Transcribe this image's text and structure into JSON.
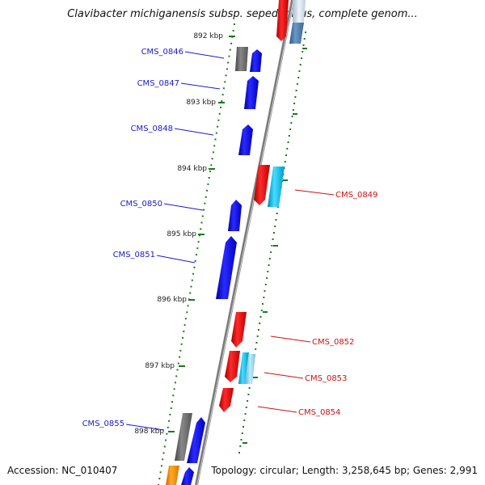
{
  "title": "Clavibacter michiganensis subsp. sepedonicus, complete genom...",
  "footer": {
    "accession": "Accession: NC_010407",
    "summary": "Topology: circular; Length: 3,258,645 bp; Genes: 2,991"
  },
  "colors": {
    "backbone": "#8a8a8a",
    "tick": "#1a7a1a",
    "label_forward": "#1a1acc",
    "label_reverse": "#cc1111"
  },
  "ticks": [
    "892 kbp",
    "893 kbp",
    "894 kbp",
    "895 kbp",
    "896 kbp",
    "897 kbp",
    "898 kbp"
  ],
  "genes": [
    {
      "label": "CMS_0846",
      "strand": "forward"
    },
    {
      "label": "CMS_0847",
      "strand": "forward"
    },
    {
      "label": "CMS_0848",
      "strand": "forward"
    },
    {
      "label": "CMS_0850",
      "strand": "forward"
    },
    {
      "label": "CMS_0851",
      "strand": "forward"
    },
    {
      "label": "CMS_0855",
      "strand": "forward"
    },
    {
      "label": "CMS_0849",
      "strand": "reverse"
    },
    {
      "label": "CMS_0852",
      "strand": "reverse"
    },
    {
      "label": "CMS_0853",
      "strand": "reverse"
    },
    {
      "label": "CMS_0854",
      "strand": "reverse"
    }
  ],
  "feature_colors": {
    "gene": "#1010e0",
    "gene_reverse": "#e01010",
    "cds_gray": "#666666",
    "cds_cyan": "#22aadd",
    "cds_orange": "#ff9900",
    "cds_steel": "#5588bb"
  }
}
